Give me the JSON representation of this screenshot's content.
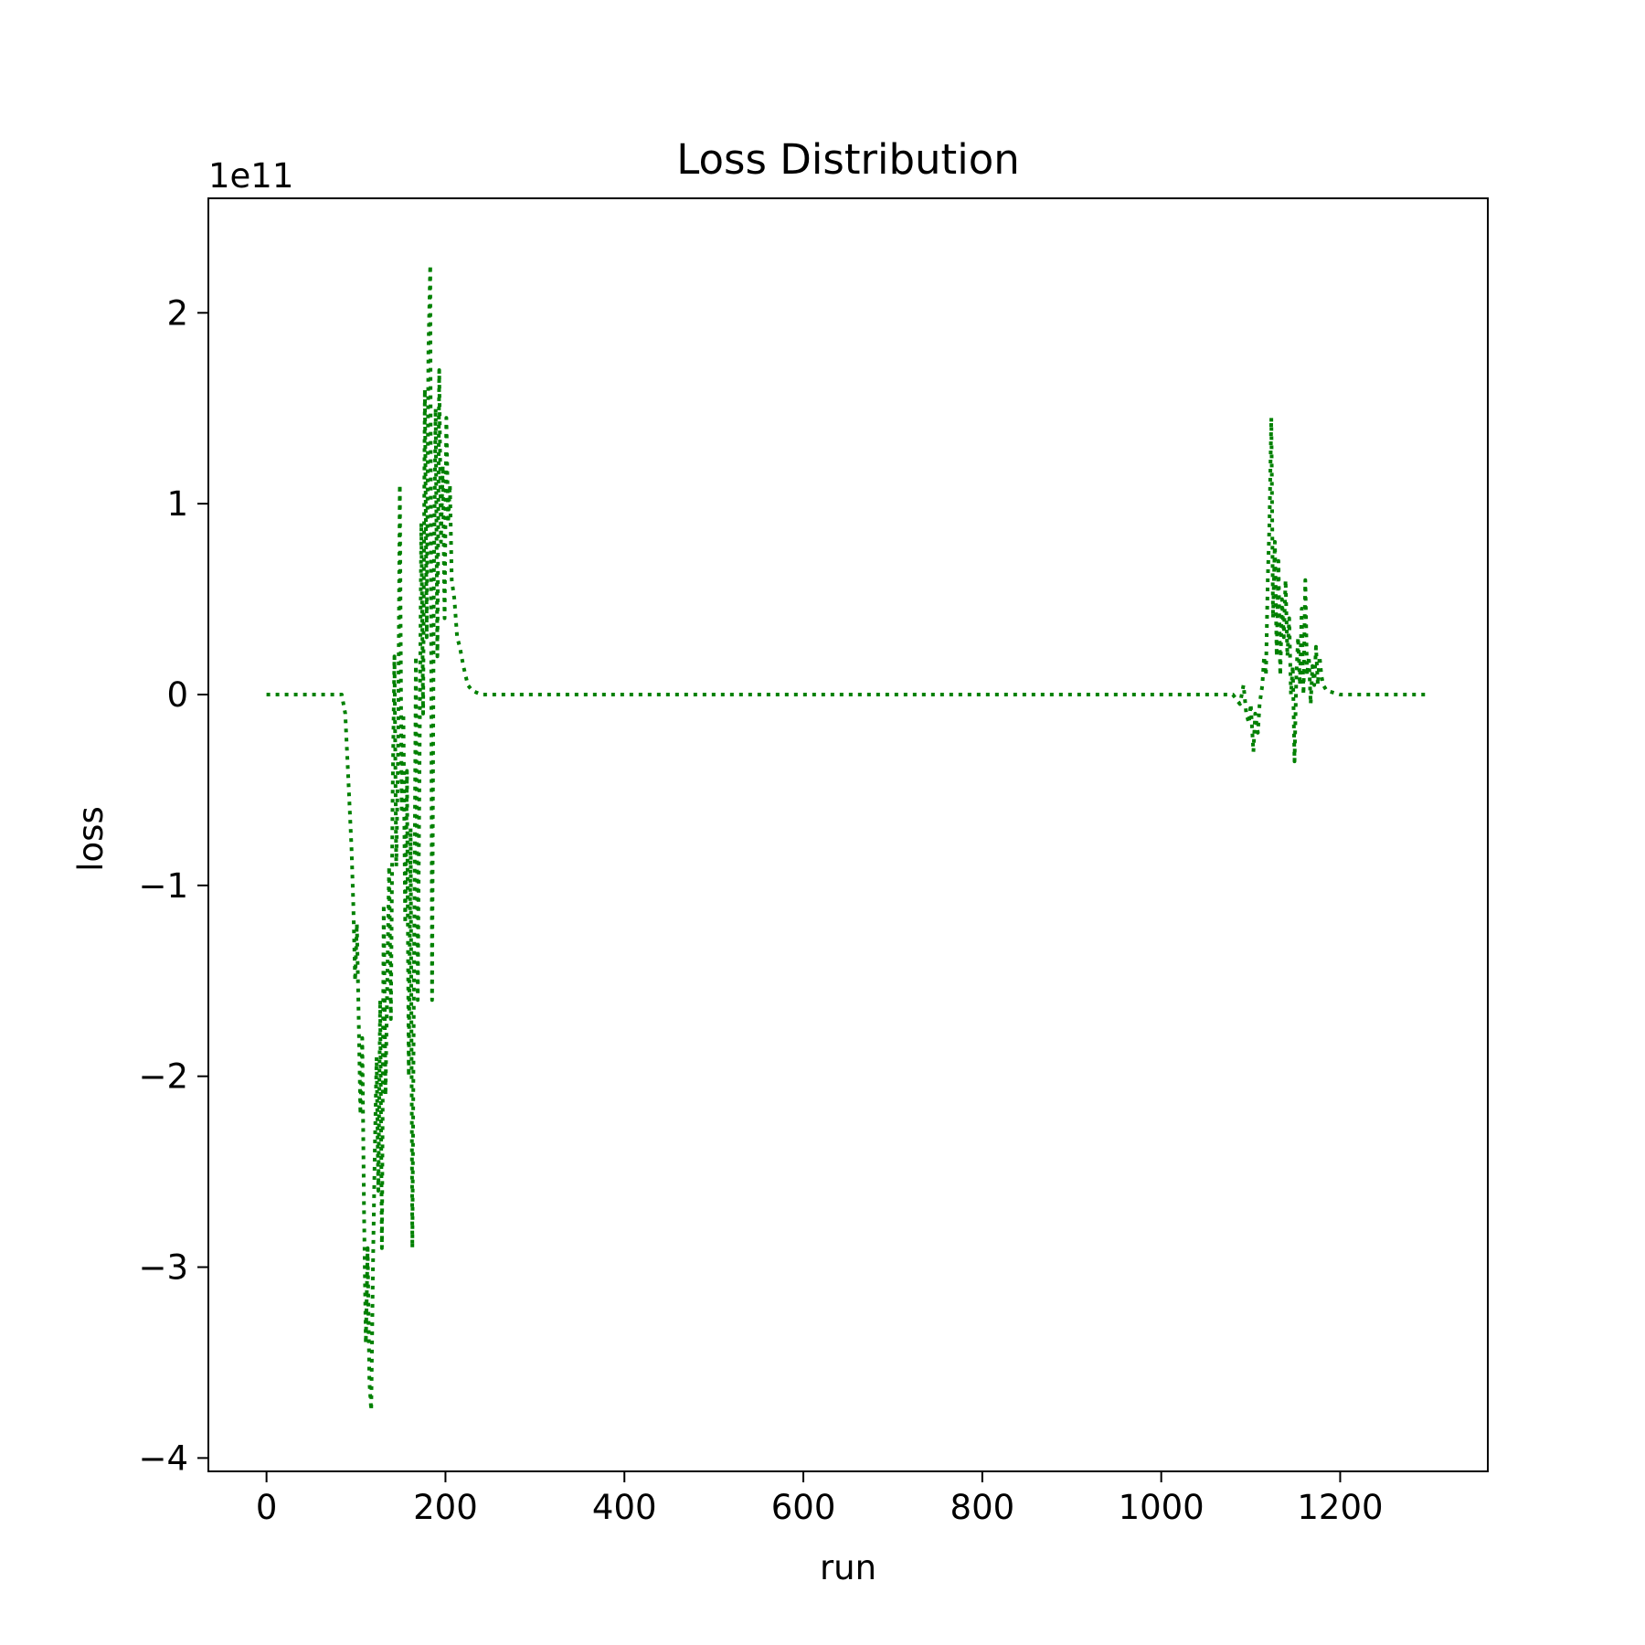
{
  "chart_data": {
    "type": "line",
    "title": "Loss Distribution",
    "xlabel": "run",
    "ylabel": "loss",
    "offset_text": "1e11",
    "scale": 100000000000,
    "xlim": [
      -65,
      1365
    ],
    "ylim": [
      -4.07,
      2.6
    ],
    "x_ticks": [
      0,
      200,
      400,
      600,
      800,
      1000,
      1200
    ],
    "x_tick_labels": [
      "0",
      "200",
      "400",
      "600",
      "800",
      "1000",
      "1200"
    ],
    "y_ticks": [
      -4,
      -3,
      -2,
      -1,
      0,
      1,
      2
    ],
    "y_tick_labels": [
      "−4",
      "−3",
      "−2",
      "−1",
      "0",
      "1",
      "2"
    ],
    "grid": false,
    "line_style": "dotted",
    "series": [
      {
        "color": "#008000",
        "x": [
          0,
          20,
          40,
          60,
          84,
          88,
          92,
          95,
          97,
          99,
          101,
          103,
          105,
          107,
          109,
          111,
          113,
          115,
          117,
          119,
          121,
          123,
          125,
          127,
          129,
          131,
          133,
          135,
          137,
          139,
          141,
          143,
          145,
          147,
          149,
          151,
          153,
          155,
          157,
          159,
          161,
          163,
          165,
          167,
          169,
          171,
          173,
          175,
          177,
          179,
          181,
          183,
          185,
          187,
          189,
          191,
          193,
          195,
          197,
          199,
          201,
          203,
          205,
          207,
          210,
          213,
          216,
          220,
          225,
          230,
          240,
          300,
          400,
          500,
          600,
          700,
          800,
          900,
          1000,
          1080,
          1088,
          1092,
          1095,
          1098,
          1100,
          1103,
          1105,
          1108,
          1110,
          1113,
          1115,
          1117,
          1119,
          1121,
          1123,
          1125,
          1127,
          1129,
          1131,
          1133,
          1135,
          1137,
          1139,
          1141,
          1143,
          1145,
          1147,
          1149,
          1151,
          1153,
          1155,
          1157,
          1159,
          1161,
          1163,
          1165,
          1167,
          1169,
          1171,
          1173,
          1175,
          1177,
          1179,
          1181,
          1185,
          1200,
          1250,
          1295
        ],
        "y": [
          0,
          0,
          0,
          0,
          0,
          -0.1,
          -0.5,
          -0.8,
          -1.1,
          -1.5,
          -1.2,
          -1.7,
          -2.2,
          -1.8,
          -2.7,
          -3.4,
          -2.9,
          -3.6,
          -3.75,
          -3.0,
          -2.4,
          -1.9,
          -2.6,
          -1.6,
          -2.9,
          -1.1,
          -2.1,
          -1.5,
          -0.9,
          -1.7,
          -0.5,
          0.2,
          -0.9,
          -0.3,
          1.1,
          -0.6,
          -0.1,
          -1.2,
          -0.4,
          -2.0,
          -0.7,
          -2.9,
          -1.3,
          0.2,
          -1.6,
          -0.4,
          0.9,
          -0.1,
          1.6,
          0.3,
          1.8,
          2.25,
          -1.6,
          0.6,
          1.5,
          0.2,
          1.7,
          0.8,
          1.2,
          0.4,
          1.45,
          0.9,
          1.1,
          0.6,
          0.5,
          0.3,
          0.25,
          0.15,
          0.05,
          0.02,
          0,
          0,
          0,
          0,
          0,
          0,
          0,
          0,
          0,
          0,
          -0.05,
          0.05,
          -0.1,
          -0.15,
          -0.05,
          -0.3,
          -0.1,
          -0.2,
          -0.05,
          0.05,
          0.2,
          0.1,
          0.6,
          0.9,
          1.45,
          0.4,
          0.8,
          0.2,
          0.7,
          0.1,
          0.5,
          0.3,
          0.6,
          0.2,
          0.4,
          0.0,
          0.15,
          -0.35,
          0.1,
          0.3,
          0.05,
          0.45,
          0.0,
          0.6,
          0.1,
          0.2,
          -0.05,
          0.15,
          0.05,
          0.25,
          0.05,
          0.2,
          0.1,
          0.05,
          0.02,
          0,
          0,
          0
        ]
      }
    ]
  }
}
